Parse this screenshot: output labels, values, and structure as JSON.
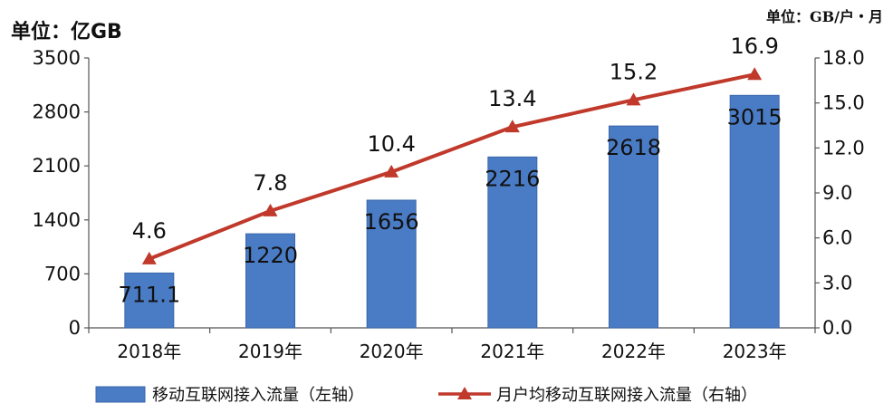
{
  "chart_data": {
    "type": "bar",
    "categories": [
      "2018年",
      "2019年",
      "2020年",
      "2021年",
      "2022年",
      "2023年"
    ],
    "series": [
      {
        "name": "移动互联网接入流量（左轴）",
        "type": "bar",
        "axis": "left",
        "values": [
          711.1,
          1220,
          1656,
          2216,
          2618,
          3015
        ],
        "labels": [
          "711.1",
          "1220",
          "1656",
          "2216",
          "2618",
          "3015"
        ],
        "color": "#4a7cc6"
      },
      {
        "name": "月户均移动互联网接入流量（右轴）",
        "type": "line",
        "axis": "right",
        "values": [
          4.6,
          7.8,
          10.4,
          13.4,
          15.2,
          16.9
        ],
        "labels": [
          "4.6",
          "7.8",
          "10.4",
          "13.4",
          "15.2",
          "16.9"
        ],
        "color": "#c0392b"
      }
    ],
    "left_axis": {
      "unit": "单位：亿GB",
      "ylim": [
        0,
        3500
      ],
      "ticks": [
        "0",
        "700",
        "1400",
        "2100",
        "2800",
        "3500"
      ]
    },
    "right_axis": {
      "unit": "单位：GB/户・月",
      "ylim": [
        0,
        18
      ],
      "ticks": [
        "0.0",
        "3.0",
        "6.0",
        "9.0",
        "12.0",
        "15.0",
        "18.0"
      ]
    },
    "grid": false,
    "legend_position": "bottom"
  }
}
